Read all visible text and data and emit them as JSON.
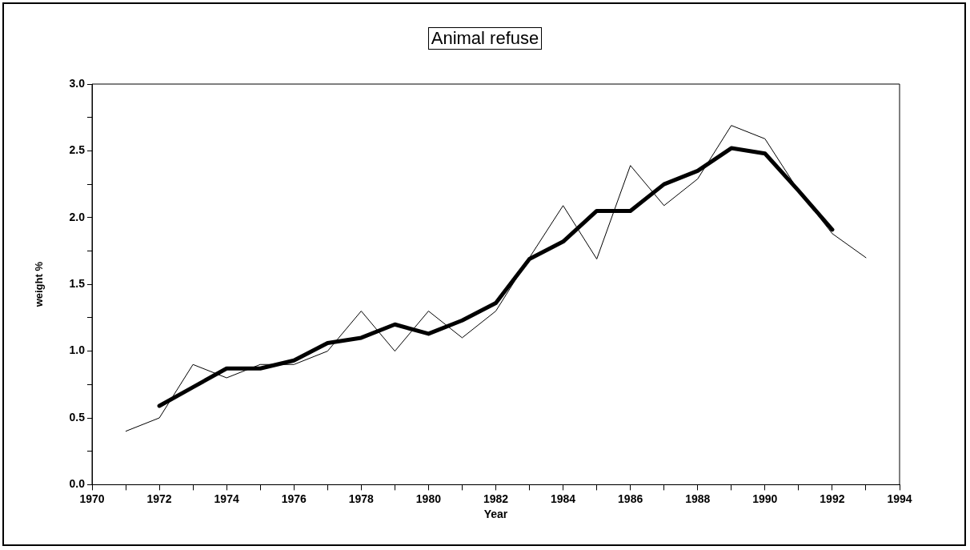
{
  "chart_data": {
    "type": "line",
    "title": "Animal refuse",
    "xlabel": "Year",
    "ylabel": "weight %",
    "xlim": [
      1970,
      1994
    ],
    "xticks": [
      1970,
      {
        "value": 1971,
        "label": null
      },
      1972,
      {
        "value": 1973,
        "label": null
      },
      1974,
      {
        "value": 1975,
        "label": null
      },
      1976,
      {
        "value": 1977,
        "label": null
      },
      1978,
      {
        "value": 1979,
        "label": null
      },
      1980,
      {
        "value": 1981,
        "label": null
      },
      1982,
      {
        "value": 1983,
        "label": null
      },
      1984,
      {
        "value": 1985,
        "label": null
      },
      1986,
      {
        "value": 1987,
        "label": null
      },
      1988,
      {
        "value": 1989,
        "label": null
      },
      1990,
      {
        "value": 1991,
        "label": null
      },
      1992,
      {
        "value": 1993,
        "label": null
      },
      1994
    ],
    "ylim": [
      0,
      3
    ],
    "yticks": [
      {
        "value": 0,
        "label": "0.0"
      },
      {
        "value": 0.25,
        "label": null
      },
      {
        "value": 0.5,
        "label": "0.5"
      },
      {
        "value": 0.75,
        "label": null
      },
      {
        "value": 1,
        "label": "1.0"
      },
      {
        "value": 1.25,
        "label": null
      },
      {
        "value": 1.5,
        "label": "1.5"
      },
      {
        "value": 1.75,
        "label": null
      },
      {
        "value": 2,
        "label": "2.0"
      },
      {
        "value": 2.25,
        "label": null
      },
      {
        "value": 2.5,
        "label": "2.5"
      },
      {
        "value": 2.75,
        "label": null
      },
      {
        "value": 3,
        "label": "3.0"
      }
    ],
    "grid": false,
    "legend": false,
    "marker": "none",
    "line_style": "solid",
    "series": [
      {
        "color": "#000000",
        "x": [
          1971,
          1972,
          1973,
          1974,
          1975,
          1976,
          1977,
          1978,
          1979,
          1980,
          1981,
          1982,
          1983,
          1984,
          1985,
          1986,
          1987,
          1988,
          1989,
          1990,
          1991,
          1992,
          1993
        ],
        "values": [
          0.4,
          0.5,
          0.9,
          0.8,
          0.9,
          0.9,
          1.0,
          1.3,
          1.0,
          1.3,
          1.1,
          1.3,
          1.7,
          2.09,
          1.69,
          2.39,
          2.09,
          2.29,
          2.69,
          2.59,
          2.2,
          1.88,
          1.7
        ]
      },
      {
        "color": "#000000",
        "x": [
          1972,
          1973,
          1974,
          1975,
          1976,
          1977,
          1978,
          1979,
          1980,
          1981,
          1982,
          1983,
          1984,
          1985,
          1986,
          1987,
          1988,
          1989,
          1990,
          1991,
          1992
        ],
        "values": [
          0.59,
          0.73,
          0.87,
          0.87,
          0.93,
          1.06,
          1.1,
          1.2,
          1.13,
          1.23,
          1.36,
          1.69,
          1.82,
          2.05,
          2.05,
          2.25,
          2.35,
          2.52,
          2.48,
          2.2,
          1.91
        ]
      }
    ]
  }
}
